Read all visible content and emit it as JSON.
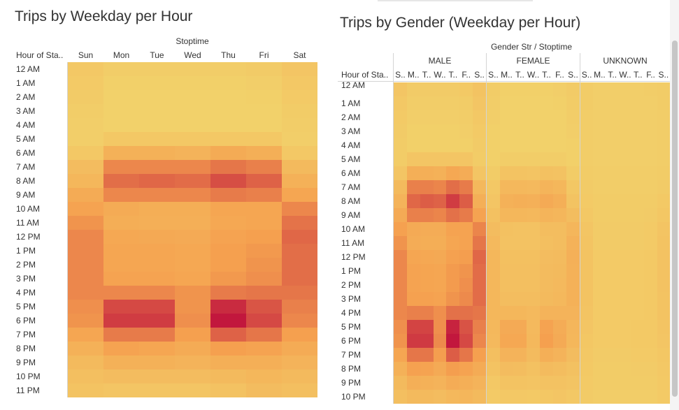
{
  "colors": {
    "low": "#f2d36b",
    "mid": "#f5a04f",
    "high": "#c2173d"
  },
  "chart_data": [
    {
      "type": "heatmap",
      "title": "Trips by Weekday per Hour",
      "column_header": "Stoptime",
      "row_header": "Hour of Sta..",
      "columns": [
        "Sun",
        "Mon",
        "Tue",
        "Wed",
        "Thu",
        "Fri",
        "Sat"
      ],
      "rows": [
        "12 AM",
        "1 AM",
        "2 AM",
        "3 AM",
        "4 AM",
        "5 AM",
        "6 AM",
        "7 AM",
        "8 AM",
        "9 AM",
        "10 AM",
        "11 AM",
        "12 PM",
        "1 PM",
        "2 PM",
        "3 PM",
        "4 PM",
        "5 PM",
        "6 PM",
        "7 PM",
        "8 PM",
        "9 PM",
        "10 PM",
        "11 PM"
      ],
      "values": [
        [
          0.1,
          0.05,
          0.05,
          0.05,
          0.05,
          0.07,
          0.12
        ],
        [
          0.08,
          0.03,
          0.03,
          0.03,
          0.03,
          0.04,
          0.1
        ],
        [
          0.07,
          0.02,
          0.02,
          0.02,
          0.02,
          0.03,
          0.08
        ],
        [
          0.05,
          0.02,
          0.02,
          0.02,
          0.02,
          0.02,
          0.06
        ],
        [
          0.04,
          0.02,
          0.02,
          0.02,
          0.02,
          0.02,
          0.05
        ],
        [
          0.04,
          0.1,
          0.1,
          0.1,
          0.1,
          0.1,
          0.04
        ],
        [
          0.1,
          0.3,
          0.3,
          0.28,
          0.35,
          0.32,
          0.1
        ],
        [
          0.2,
          0.55,
          0.55,
          0.55,
          0.62,
          0.58,
          0.22
        ],
        [
          0.25,
          0.65,
          0.68,
          0.66,
          0.78,
          0.7,
          0.3
        ],
        [
          0.35,
          0.55,
          0.55,
          0.55,
          0.6,
          0.58,
          0.4
        ],
        [
          0.42,
          0.35,
          0.33,
          0.33,
          0.4,
          0.4,
          0.55
        ],
        [
          0.5,
          0.33,
          0.32,
          0.32,
          0.38,
          0.4,
          0.63
        ],
        [
          0.55,
          0.38,
          0.37,
          0.36,
          0.42,
          0.45,
          0.68
        ],
        [
          0.55,
          0.4,
          0.4,
          0.38,
          0.45,
          0.48,
          0.65
        ],
        [
          0.55,
          0.4,
          0.4,
          0.38,
          0.45,
          0.5,
          0.65
        ],
        [
          0.55,
          0.42,
          0.42,
          0.4,
          0.48,
          0.52,
          0.65
        ],
        [
          0.55,
          0.55,
          0.55,
          0.5,
          0.6,
          0.62,
          0.62
        ],
        [
          0.52,
          0.8,
          0.8,
          0.5,
          0.92,
          0.75,
          0.58
        ],
        [
          0.5,
          0.85,
          0.85,
          0.52,
          1.0,
          0.8,
          0.55
        ],
        [
          0.4,
          0.6,
          0.6,
          0.45,
          0.7,
          0.62,
          0.45
        ],
        [
          0.3,
          0.42,
          0.4,
          0.35,
          0.45,
          0.42,
          0.35
        ],
        [
          0.22,
          0.3,
          0.3,
          0.28,
          0.32,
          0.32,
          0.28
        ],
        [
          0.18,
          0.2,
          0.2,
          0.2,
          0.22,
          0.25,
          0.22
        ],
        [
          0.14,
          0.12,
          0.12,
          0.12,
          0.15,
          0.2,
          0.18
        ]
      ]
    },
    {
      "type": "heatmap",
      "title": "Trips by Gender (Weekday per Hour)",
      "column_header": "Gender Str / Stoptime",
      "row_header": "Hour of Sta..",
      "groups": [
        "MALE",
        "FEMALE",
        "UNKNOWN"
      ],
      "day_labels": [
        "S..",
        "M..",
        "T..",
        "W..",
        "T..",
        "F..",
        "S.."
      ],
      "rows": [
        "12 AM",
        "1 AM",
        "2 AM",
        "3 AM",
        "4 AM",
        "5 AM",
        "6 AM",
        "7 AM",
        "8 AM",
        "9 AM",
        "10 AM",
        "11 AM",
        "12 PM",
        "1 PM",
        "2 PM",
        "3 PM",
        "4 PM",
        "5 PM",
        "6 PM",
        "7 PM",
        "8 PM",
        "9 PM",
        "10 PM"
      ],
      "values": {
        "MALE": [
          [
            0.12,
            0.07,
            0.07,
            0.07,
            0.07,
            0.09,
            0.14
          ],
          [
            0.1,
            0.05,
            0.05,
            0.05,
            0.05,
            0.06,
            0.12
          ],
          [
            0.08,
            0.04,
            0.04,
            0.04,
            0.04,
            0.05,
            0.1
          ],
          [
            0.07,
            0.03,
            0.03,
            0.03,
            0.03,
            0.04,
            0.08
          ],
          [
            0.06,
            0.03,
            0.03,
            0.03,
            0.03,
            0.03,
            0.07
          ],
          [
            0.06,
            0.12,
            0.12,
            0.12,
            0.12,
            0.12,
            0.06
          ],
          [
            0.12,
            0.32,
            0.32,
            0.3,
            0.38,
            0.34,
            0.12
          ],
          [
            0.22,
            0.58,
            0.58,
            0.56,
            0.65,
            0.6,
            0.24
          ],
          [
            0.28,
            0.68,
            0.72,
            0.7,
            0.85,
            0.72,
            0.32
          ],
          [
            0.36,
            0.58,
            0.58,
            0.56,
            0.64,
            0.6,
            0.42
          ],
          [
            0.44,
            0.36,
            0.34,
            0.34,
            0.42,
            0.42,
            0.56
          ],
          [
            0.5,
            0.34,
            0.33,
            0.33,
            0.4,
            0.42,
            0.62
          ],
          [
            0.55,
            0.4,
            0.38,
            0.37,
            0.44,
            0.46,
            0.68
          ],
          [
            0.55,
            0.42,
            0.41,
            0.4,
            0.47,
            0.5,
            0.66
          ],
          [
            0.55,
            0.42,
            0.41,
            0.4,
            0.47,
            0.52,
            0.66
          ],
          [
            0.55,
            0.44,
            0.44,
            0.42,
            0.5,
            0.54,
            0.66
          ],
          [
            0.55,
            0.58,
            0.58,
            0.52,
            0.64,
            0.64,
            0.62
          ],
          [
            0.52,
            0.82,
            0.82,
            0.52,
            0.95,
            0.76,
            0.58
          ],
          [
            0.5,
            0.86,
            0.86,
            0.54,
            1.0,
            0.8,
            0.55
          ],
          [
            0.4,
            0.62,
            0.62,
            0.46,
            0.72,
            0.62,
            0.45
          ],
          [
            0.3,
            0.44,
            0.42,
            0.36,
            0.46,
            0.42,
            0.35
          ],
          [
            0.22,
            0.32,
            0.3,
            0.28,
            0.34,
            0.32,
            0.28
          ],
          [
            0.18,
            0.22,
            0.22,
            0.2,
            0.24,
            0.26,
            0.22
          ]
        ],
        "FEMALE": [
          [
            0.06,
            0.03,
            0.03,
            0.03,
            0.03,
            0.04,
            0.07
          ],
          [
            0.05,
            0.02,
            0.02,
            0.02,
            0.02,
            0.03,
            0.06
          ],
          [
            0.04,
            0.02,
            0.02,
            0.02,
            0.02,
            0.02,
            0.05
          ],
          [
            0.03,
            0.02,
            0.02,
            0.02,
            0.02,
            0.02,
            0.04
          ],
          [
            0.03,
            0.02,
            0.02,
            0.02,
            0.02,
            0.02,
            0.03
          ],
          [
            0.03,
            0.05,
            0.05,
            0.05,
            0.05,
            0.05,
            0.03
          ],
          [
            0.06,
            0.14,
            0.14,
            0.13,
            0.16,
            0.15,
            0.06
          ],
          [
            0.1,
            0.24,
            0.24,
            0.23,
            0.27,
            0.25,
            0.11
          ],
          [
            0.12,
            0.3,
            0.32,
            0.31,
            0.36,
            0.32,
            0.14
          ],
          [
            0.16,
            0.25,
            0.25,
            0.24,
            0.27,
            0.26,
            0.19
          ],
          [
            0.2,
            0.16,
            0.15,
            0.15,
            0.19,
            0.19,
            0.26
          ],
          [
            0.23,
            0.15,
            0.15,
            0.15,
            0.18,
            0.19,
            0.29
          ],
          [
            0.25,
            0.17,
            0.17,
            0.17,
            0.2,
            0.21,
            0.31
          ],
          [
            0.25,
            0.18,
            0.18,
            0.18,
            0.21,
            0.22,
            0.3
          ],
          [
            0.25,
            0.18,
            0.18,
            0.18,
            0.21,
            0.23,
            0.3
          ],
          [
            0.25,
            0.19,
            0.19,
            0.19,
            0.22,
            0.24,
            0.3
          ],
          [
            0.25,
            0.25,
            0.25,
            0.23,
            0.28,
            0.28,
            0.28
          ],
          [
            0.24,
            0.36,
            0.36,
            0.23,
            0.42,
            0.34,
            0.26
          ],
          [
            0.23,
            0.38,
            0.38,
            0.24,
            0.45,
            0.36,
            0.25
          ],
          [
            0.18,
            0.28,
            0.28,
            0.21,
            0.32,
            0.28,
            0.2
          ],
          [
            0.14,
            0.2,
            0.19,
            0.16,
            0.21,
            0.19,
            0.16
          ],
          [
            0.1,
            0.14,
            0.14,
            0.13,
            0.15,
            0.15,
            0.13
          ],
          [
            0.08,
            0.1,
            0.1,
            0.09,
            0.11,
            0.12,
            0.1
          ]
        ],
        "UNKNOWN": [
          [
            0.06,
            0.04,
            0.04,
            0.04,
            0.04,
            0.05,
            0.06
          ],
          [
            0.06,
            0.04,
            0.04,
            0.04,
            0.04,
            0.04,
            0.06
          ],
          [
            0.05,
            0.04,
            0.04,
            0.04,
            0.04,
            0.04,
            0.05
          ],
          [
            0.05,
            0.04,
            0.04,
            0.04,
            0.04,
            0.04,
            0.05
          ],
          [
            0.05,
            0.04,
            0.04,
            0.04,
            0.04,
            0.04,
            0.05
          ],
          [
            0.05,
            0.04,
            0.04,
            0.04,
            0.04,
            0.04,
            0.05
          ],
          [
            0.06,
            0.05,
            0.05,
            0.05,
            0.05,
            0.05,
            0.06
          ],
          [
            0.07,
            0.05,
            0.05,
            0.05,
            0.05,
            0.05,
            0.07
          ],
          [
            0.08,
            0.06,
            0.06,
            0.06,
            0.06,
            0.06,
            0.09
          ],
          [
            0.1,
            0.06,
            0.06,
            0.06,
            0.06,
            0.07,
            0.11
          ],
          [
            0.12,
            0.07,
            0.07,
            0.07,
            0.07,
            0.08,
            0.13
          ],
          [
            0.13,
            0.07,
            0.07,
            0.07,
            0.07,
            0.08,
            0.14
          ],
          [
            0.14,
            0.08,
            0.08,
            0.08,
            0.08,
            0.09,
            0.15
          ],
          [
            0.14,
            0.08,
            0.08,
            0.08,
            0.08,
            0.09,
            0.15
          ],
          [
            0.14,
            0.08,
            0.08,
            0.08,
            0.08,
            0.09,
            0.15
          ],
          [
            0.14,
            0.08,
            0.08,
            0.08,
            0.08,
            0.09,
            0.14
          ],
          [
            0.13,
            0.08,
            0.08,
            0.08,
            0.08,
            0.09,
            0.14
          ],
          [
            0.12,
            0.08,
            0.08,
            0.08,
            0.09,
            0.09,
            0.13
          ],
          [
            0.11,
            0.08,
            0.08,
            0.08,
            0.09,
            0.09,
            0.12
          ],
          [
            0.1,
            0.07,
            0.07,
            0.07,
            0.08,
            0.08,
            0.11
          ],
          [
            0.09,
            0.06,
            0.06,
            0.06,
            0.07,
            0.07,
            0.1
          ],
          [
            0.08,
            0.06,
            0.06,
            0.06,
            0.06,
            0.06,
            0.09
          ],
          [
            0.07,
            0.05,
            0.05,
            0.05,
            0.05,
            0.05,
            0.08
          ]
        ]
      }
    }
  ]
}
